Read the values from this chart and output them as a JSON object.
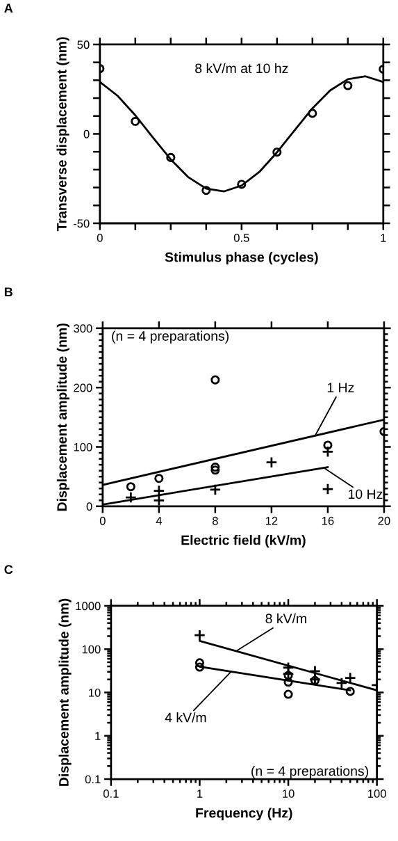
{
  "chart_data": [
    {
      "type": "scatter",
      "title": "A",
      "xlabel": "Stimulus phase (cycles)",
      "ylabel": "Transverse displacement (nm)",
      "annotations": [
        "8 kV/m at 10 hz"
      ],
      "xlim": [
        0,
        1
      ],
      "ylim": [
        -50,
        50
      ],
      "xticks": [
        0,
        {
          "value": 0.125,
          "label": null
        },
        {
          "value": 0.25,
          "label": null
        },
        {
          "value": 0.375,
          "label": null
        },
        0.5,
        {
          "value": 0.625,
          "label": null
        },
        {
          "value": 0.75,
          "label": null
        },
        {
          "value": 0.875,
          "label": null
        },
        1
      ],
      "yticks": [
        -50,
        {
          "value": -40,
          "label": null
        },
        {
          "value": -30,
          "label": null
        },
        {
          "value": -20,
          "label": null
        },
        {
          "value": -10,
          "label": null
        },
        0,
        {
          "value": 10,
          "label": null
        },
        {
          "value": 20,
          "label": null
        },
        {
          "value": 30,
          "label": null
        },
        {
          "value": 40,
          "label": null
        },
        50
      ],
      "grid": false,
      "series": [
        {
          "marker": "circle",
          "color": "#000000",
          "x": [
            0,
            0.125,
            0.25,
            0.375,
            0.5,
            0.625,
            0.75,
            0.875,
            1
          ],
          "values": [
            36.5,
            7,
            -13.2,
            -31.6,
            -28.2,
            -10.2,
            11.5,
            27,
            36.2
          ]
        },
        {
          "type": "line",
          "marker": "none",
          "color": "#000000",
          "x": [
            0,
            0.0625,
            0.125,
            0.1875,
            0.25,
            0.3125,
            0.375,
            0.4375,
            0.5,
            0.5625,
            0.625,
            0.6875,
            0.75,
            0.8125,
            0.875,
            0.9375,
            1
          ],
          "values": [
            29.0,
            21.3,
            10.4,
            -2.1,
            -14.3,
            -24.3,
            -30.6,
            -32.2,
            -28.9,
            -21.3,
            -10.3,
            2.1,
            14.3,
            24.3,
            30.6,
            32.2,
            29.0
          ]
        }
      ]
    },
    {
      "type": "scatter",
      "title": "B",
      "xlabel": "Electric field (kV/m)",
      "ylabel": "Displacement amplitude (nm)",
      "annotations": [
        "(n = 4 preparations)",
        {
          "text": "1 Hz",
          "x": 15.1,
          "y": 119
        },
        {
          "text": "10 Hz",
          "x": 15.7,
          "y": 65
        }
      ],
      "xlim": [
        0,
        20
      ],
      "ylim": [
        0,
        300
      ],
      "xticks": [
        0,
        4,
        8,
        12,
        16,
        20
      ],
      "yticks": [
        0,
        {
          "value": 10,
          "label": null
        },
        {
          "value": 20,
          "label": null
        },
        {
          "value": 30,
          "label": null
        },
        {
          "value": 40,
          "label": null
        },
        {
          "value": 50,
          "label": null
        },
        {
          "value": 60,
          "label": null
        },
        {
          "value": 70,
          "label": null
        },
        {
          "value": 80,
          "label": null
        },
        {
          "value": 90,
          "label": null
        },
        100,
        {
          "value": 110,
          "label": null
        },
        {
          "value": 120,
          "label": null
        },
        {
          "value": 130,
          "label": null
        },
        {
          "value": 140,
          "label": null
        },
        {
          "value": 150,
          "label": null
        },
        {
          "value": 160,
          "label": null
        },
        {
          "value": 170,
          "label": null
        },
        {
          "value": 180,
          "label": null
        },
        {
          "value": 190,
          "label": null
        },
        200,
        {
          "value": 210,
          "label": null
        },
        {
          "value": 220,
          "label": null
        },
        {
          "value": 230,
          "label": null
        },
        {
          "value": 240,
          "label": null
        },
        {
          "value": 250,
          "label": null
        },
        {
          "value": 260,
          "label": null
        },
        {
          "value": 270,
          "label": null
        },
        {
          "value": 280,
          "label": null
        },
        {
          "value": 290,
          "label": null
        },
        300
      ],
      "grid": false,
      "series": [
        {
          "marker": "circle",
          "color": "#000000",
          "x": [
            2,
            4,
            8,
            8,
            8,
            16,
            20
          ],
          "values": [
            33,
            47,
            213,
            66,
            61,
            103,
            126
          ]
        },
        {
          "marker": "cross",
          "color": "#000000",
          "x": [
            2,
            4,
            4,
            8,
            12,
            16,
            16
          ],
          "values": [
            15,
            26,
            10,
            28,
            74,
            92,
            29
          ]
        },
        {
          "type": "line",
          "marker": "none",
          "color": "#000000",
          "x": [
            0,
            20
          ],
          "values": [
            36,
            146
          ]
        },
        {
          "type": "line",
          "marker": "none",
          "color": "#000000",
          "x": [
            0,
            16
          ],
          "values": [
            3,
            66
          ]
        }
      ]
    },
    {
      "type": "scatter",
      "title": "C",
      "xlabel": "Frequency (Hz)",
      "ylabel": "Displacement amplitude (nm)",
      "annotations": [
        "(n = 4 preparations)",
        {
          "text": "8 kV/m",
          "x": 2.58,
          "y": 90
        },
        {
          "text": "4 kV/m",
          "x": 2.25,
          "y": 30
        }
      ],
      "log": "xy",
      "xlim": [
        0.1,
        100
      ],
      "ylim": [
        0.1,
        1000
      ],
      "xticks": [
        0.1,
        1,
        10,
        100
      ],
      "yticks": [
        0.1,
        1,
        10,
        100,
        1000
      ],
      "grid": false,
      "series": [
        {
          "marker": "cross",
          "color": "#000000",
          "x": [
            1,
            10,
            10,
            20,
            20,
            40,
            50,
            100
          ],
          "values": [
            210,
            37.5,
            27,
            31,
            20,
            16.5,
            21.7,
            14.8
          ]
        },
        {
          "marker": "circle",
          "color": "#000000",
          "x": [
            1,
            1,
            10,
            10,
            10,
            20,
            50
          ],
          "values": [
            48.5,
            38.5,
            24.8,
            17.4,
            9.1,
            18.9,
            10.6
          ]
        },
        {
          "type": "line",
          "marker": "none",
          "color": "#000000",
          "x": [
            1,
            100
          ],
          "values": [
            155,
            11.2
          ]
        },
        {
          "type": "line",
          "marker": "none",
          "color": "#000000",
          "x": [
            1,
            50
          ],
          "values": [
            39.5,
            11.2
          ]
        }
      ]
    }
  ]
}
